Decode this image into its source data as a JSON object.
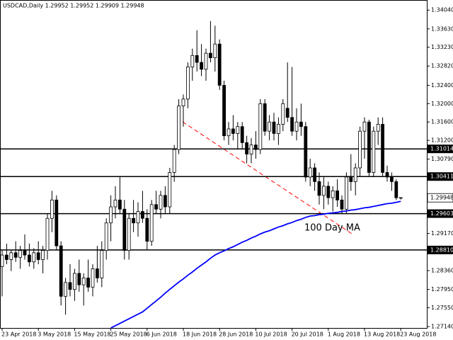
{
  "chart_data": {
    "type": "candlestick",
    "title": "USDCAD,Daily  1.29952 1.29952 1.29909 1.29948",
    "annotation": "100 Day MA",
    "categories": [
      "23 Apr 2018",
      null,
      null,
      null,
      null,
      null,
      null,
      null,
      "3 May 2018",
      null,
      null,
      null,
      null,
      null,
      null,
      null,
      "15 May 2018",
      null,
      null,
      null,
      null,
      null,
      null,
      null,
      "25 May 2018",
      null,
      null,
      null,
      null,
      null,
      null,
      null,
      "6 Jun 2018",
      null,
      null,
      null,
      null,
      null,
      null,
      null,
      "18 Jun 2018",
      null,
      null,
      null,
      null,
      null,
      null,
      null,
      "28 Jun 2018",
      null,
      null,
      null,
      null,
      null,
      null,
      null,
      "10 Jul 2018",
      null,
      null,
      null,
      null,
      null,
      null,
      null,
      "20 Jul 2018",
      null,
      null,
      null,
      null,
      null,
      null,
      null,
      "1 Aug 2018",
      null,
      null,
      null,
      null,
      null,
      null,
      null,
      "13 Aug 2018",
      null,
      null,
      null,
      null,
      null,
      null,
      null,
      "23 Aug 2018"
    ],
    "open": [
      1.2845,
      1.287,
      1.286,
      1.2875,
      1.2865,
      1.288,
      1.287,
      1.2855,
      1.2875,
      1.286,
      1.288,
      1.295,
      1.299,
      1.289,
      1.278,
      1.281,
      1.2795,
      1.283,
      1.2805,
      1.282,
      1.28,
      1.284,
      1.282,
      1.288,
      1.294,
      1.2975,
      1.299,
      1.297,
      1.288,
      1.295,
      1.294,
      1.2965,
      1.295,
      1.29,
      1.298,
      1.297,
      1.3,
      1.2975,
      1.305,
      1.31,
      1.3195,
      1.321,
      1.328,
      1.3305,
      1.329,
      1.3275,
      1.331,
      1.33,
      1.333,
      1.324,
      1.313,
      1.3145,
      1.3135,
      1.315,
      1.3115,
      1.309,
      1.311,
      1.31,
      1.32,
      1.314,
      1.316,
      1.3135,
      1.3155,
      1.319,
      1.317,
      1.314,
      1.316,
      1.315,
      1.304,
      1.306,
      1.303,
      1.3,
      1.302,
      1.2995,
      1.301,
      1.299,
      1.297,
      1.304,
      1.303,
      1.306,
      1.314,
      1.316,
      1.305,
      1.314,
      1.3155,
      1.305,
      1.304,
      1.303,
      1.29952
    ],
    "high": [
      1.288,
      1.2895,
      1.288,
      1.29,
      1.289,
      1.2915,
      1.2895,
      1.2885,
      1.29,
      1.289,
      1.296,
      1.301,
      1.3,
      1.29,
      1.282,
      1.285,
      1.284,
      1.286,
      1.283,
      1.286,
      1.285,
      1.289,
      1.29,
      1.295,
      1.3,
      1.302,
      1.304,
      1.299,
      1.296,
      1.299,
      1.2985,
      1.301,
      1.297,
      1.299,
      1.301,
      1.301,
      1.302,
      1.306,
      1.311,
      1.321,
      1.322,
      1.329,
      1.332,
      1.336,
      1.333,
      1.332,
      1.338,
      1.337,
      1.334,
      1.325,
      1.316,
      1.3175,
      1.316,
      1.316,
      1.313,
      1.3125,
      1.314,
      1.321,
      1.321,
      1.3175,
      1.318,
      1.317,
      1.321,
      1.329,
      1.328,
      1.319,
      1.32,
      1.316,
      1.308,
      1.307,
      1.305,
      1.304,
      1.303,
      1.302,
      1.3035,
      1.3,
      1.305,
      1.309,
      1.307,
      1.315,
      1.317,
      1.3165,
      1.315,
      1.317,
      1.317,
      1.3065,
      1.305,
      1.3035,
      1.29952
    ],
    "low": [
      1.278,
      1.285,
      1.2835,
      1.2855,
      1.284,
      1.286,
      1.2845,
      1.284,
      1.285,
      1.283,
      1.286,
      1.292,
      1.288,
      1.276,
      1.274,
      1.278,
      1.277,
      1.279,
      1.276,
      1.279,
      1.278,
      1.281,
      1.28,
      1.286,
      1.29,
      1.295,
      1.296,
      1.286,
      1.286,
      1.292,
      1.291,
      1.294,
      1.288,
      1.289,
      1.296,
      1.295,
      1.296,
      1.296,
      1.303,
      1.309,
      1.315,
      1.319,
      1.325,
      1.327,
      1.326,
      1.325,
      1.329,
      1.327,
      1.323,
      1.312,
      1.311,
      1.312,
      1.31,
      1.31,
      1.307,
      1.307,
      1.308,
      1.309,
      1.313,
      1.312,
      1.312,
      1.311,
      1.314,
      1.316,
      1.313,
      1.312,
      1.313,
      1.303,
      1.302,
      1.301,
      1.298,
      1.297,
      1.298,
      1.2965,
      1.2975,
      1.296,
      1.296,
      1.301,
      1.3,
      1.304,
      1.308,
      1.304,
      1.304,
      1.311,
      1.304,
      1.303,
      1.301,
      1.299,
      1.29909
    ],
    "close": [
      1.287,
      1.286,
      1.2875,
      1.2865,
      1.288,
      1.287,
      1.2855,
      1.2875,
      1.286,
      1.288,
      1.295,
      1.299,
      1.289,
      1.278,
      1.281,
      1.2795,
      1.283,
      1.2805,
      1.282,
      1.28,
      1.284,
      1.282,
      1.288,
      1.294,
      1.2975,
      1.299,
      1.297,
      1.288,
      1.295,
      1.294,
      1.2965,
      1.295,
      1.29,
      1.298,
      1.297,
      1.3,
      1.2975,
      1.305,
      1.31,
      1.3195,
      1.321,
      1.328,
      1.3305,
      1.329,
      1.3275,
      1.331,
      1.33,
      1.333,
      1.324,
      1.313,
      1.3145,
      1.3135,
      1.315,
      1.3115,
      1.309,
      1.311,
      1.31,
      1.32,
      1.314,
      1.316,
      1.3135,
      1.3155,
      1.32,
      1.317,
      1.314,
      1.316,
      1.315,
      1.304,
      1.306,
      1.303,
      1.3,
      1.302,
      1.2995,
      1.301,
      1.299,
      1.297,
      1.304,
      1.303,
      1.306,
      1.314,
      1.316,
      1.305,
      1.314,
      1.3155,
      1.305,
      1.304,
      1.303,
      1.2995,
      1.29948
    ],
    "ma": {
      "color": "#0000ff",
      "values": [
        null,
        null,
        null,
        null,
        null,
        null,
        null,
        null,
        null,
        null,
        null,
        null,
        null,
        null,
        null,
        null,
        null,
        null,
        null,
        null,
        null,
        null,
        null,
        null,
        1.2711,
        1.2716,
        1.2721,
        1.2726,
        1.2731,
        1.2736,
        1.2741,
        1.2746,
        1.2754,
        1.2762,
        1.277,
        1.2778,
        1.2787,
        1.2795,
        1.2803,
        1.2811,
        1.2818,
        1.2826,
        1.2833,
        1.2841,
        1.2848,
        1.2855,
        1.2863,
        1.287,
        1.2875,
        1.2879,
        1.2884,
        1.2888,
        1.2893,
        1.2898,
        1.2902,
        1.2907,
        1.2911,
        1.2916,
        1.292,
        1.2923,
        1.2927,
        1.2931,
        1.2934,
        1.2938,
        1.2941,
        1.2945,
        1.2948,
        1.2952,
        1.2955,
        1.2956,
        1.2958,
        1.2959,
        1.2961,
        1.2962,
        1.2963,
        1.2965,
        1.2966,
        1.2968,
        1.2969,
        1.2971,
        1.2973,
        1.2974,
        1.2976,
        1.2978,
        1.298,
        1.2982,
        1.2983,
        1.2985,
        1.2987
      ]
    },
    "up_color": "#ffffff",
    "down_color": "#000000",
    "levels": [
      {
        "value": 1.31014,
        "label": "1.31014"
      },
      {
        "value": 1.30411,
        "label": "1.30411"
      },
      {
        "value": 1.29603,
        "label": "1.29603"
      },
      {
        "value": 1.2881,
        "label": "1.28810"
      }
    ],
    "price": {
      "value": 1.29948,
      "label": "1.29948"
    },
    "ylim": [
      1.2711,
      1.3426
    ],
    "yticks": [
      {
        "value": 1.3404,
        "label": "1.34040"
      },
      {
        "value": 1.3363,
        "label": "1.33630"
      },
      {
        "value": 1.3323,
        "label": "1.33230"
      },
      {
        "value": 1.3282,
        "label": "1.32820"
      },
      {
        "value": 1.324,
        "label": "1.32400"
      },
      {
        "value": 1.32,
        "label": "1.32000"
      },
      {
        "value": 1.316,
        "label": "1.31600"
      },
      {
        "value": 1.312,
        "label": "1.31200"
      },
      {
        "value": 1.3079,
        "label": "1.30790"
      },
      {
        "value": 1.2917,
        "label": "1.29170"
      },
      {
        "value": 1.2836,
        "label": "1.28360"
      },
      {
        "value": 1.2795,
        "label": "1.27950"
      },
      {
        "value": 1.2755,
        "label": "1.27550"
      },
      {
        "value": 1.2714,
        "label": "1.27140"
      }
    ],
    "grid": false
  }
}
